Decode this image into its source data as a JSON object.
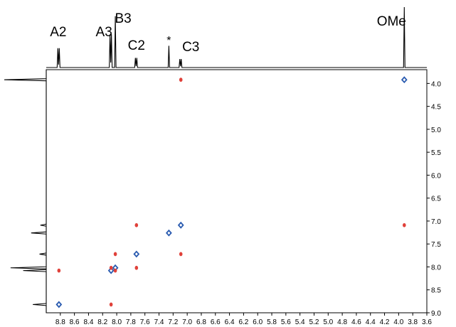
{
  "chart_data": {
    "type": "scatter",
    "title": "",
    "xlabel": "",
    "ylabel": "",
    "x_reversed": true,
    "y_reversed": true,
    "xlim": [
      9.0,
      3.6
    ],
    "ylim": [
      3.7,
      9.0
    ],
    "x_ticks": [
      "8.8",
      "8.6",
      "8.4",
      "8.2",
      "8.0",
      "7.8",
      "7.6",
      "7.4",
      "7.2",
      "7.0",
      "6.8",
      "6.6",
      "6.4",
      "6.2",
      "6.0",
      "5.8",
      "5.6",
      "5.4",
      "5.2",
      "5.0",
      "4.8",
      "4.6",
      "4.4",
      "4.2",
      "4.0",
      "3.8",
      "3.6"
    ],
    "y_ticks": [
      "4.0",
      "4.5",
      "5.0",
      "5.5",
      "6.0",
      "6.5",
      "7.0",
      "7.5",
      "8.0",
      "8.5",
      "9.0"
    ],
    "peak_labels": [
      {
        "text": "A2",
        "ppm": 8.82
      },
      {
        "text": "A3",
        "ppm": 8.08
      },
      {
        "text": "B3",
        "ppm": 8.02
      },
      {
        "text": "C2",
        "ppm": 7.72
      },
      {
        "text": "*",
        "ppm": 7.26
      },
      {
        "text": "C3",
        "ppm": 7.09
      },
      {
        "text": "OMe",
        "ppm": 3.92
      }
    ],
    "projection_peaks": [
      {
        "ppm": 8.82,
        "intensity": 0.32
      },
      {
        "ppm": 8.08,
        "intensity": 0.55
      },
      {
        "ppm": 8.02,
        "intensity": 0.85
      },
      {
        "ppm": 7.72,
        "intensity": 0.16
      },
      {
        "ppm": 7.26,
        "intensity": 0.36
      },
      {
        "ppm": 7.09,
        "intensity": 0.14
      },
      {
        "ppm": 3.92,
        "intensity": 1.0
      }
    ],
    "series": [
      {
        "color": "#2a5bb0",
        "points": [
          {
            "x": 3.92,
            "y": 3.92
          },
          {
            "x": 7.09,
            "y": 7.09
          },
          {
            "x": 7.26,
            "y": 7.26
          },
          {
            "x": 7.72,
            "y": 7.72
          },
          {
            "x": 8.02,
            "y": 8.02
          },
          {
            "x": 8.08,
            "y": 8.08
          },
          {
            "x": 8.82,
            "y": 8.82
          }
        ]
      },
      {
        "color": "#e0413a",
        "points": [
          {
            "x": 7.09,
            "y": 3.92
          },
          {
            "x": 3.92,
            "y": 7.09
          },
          {
            "x": 7.72,
            "y": 7.09
          },
          {
            "x": 7.09,
            "y": 7.72
          },
          {
            "x": 8.02,
            "y": 7.72
          },
          {
            "x": 7.72,
            "y": 8.02
          },
          {
            "x": 8.08,
            "y": 8.02
          },
          {
            "x": 8.02,
            "y": 8.08
          },
          {
            "x": 8.82,
            "y": 8.08
          },
          {
            "x": 8.08,
            "y": 8.82
          }
        ]
      }
    ]
  }
}
